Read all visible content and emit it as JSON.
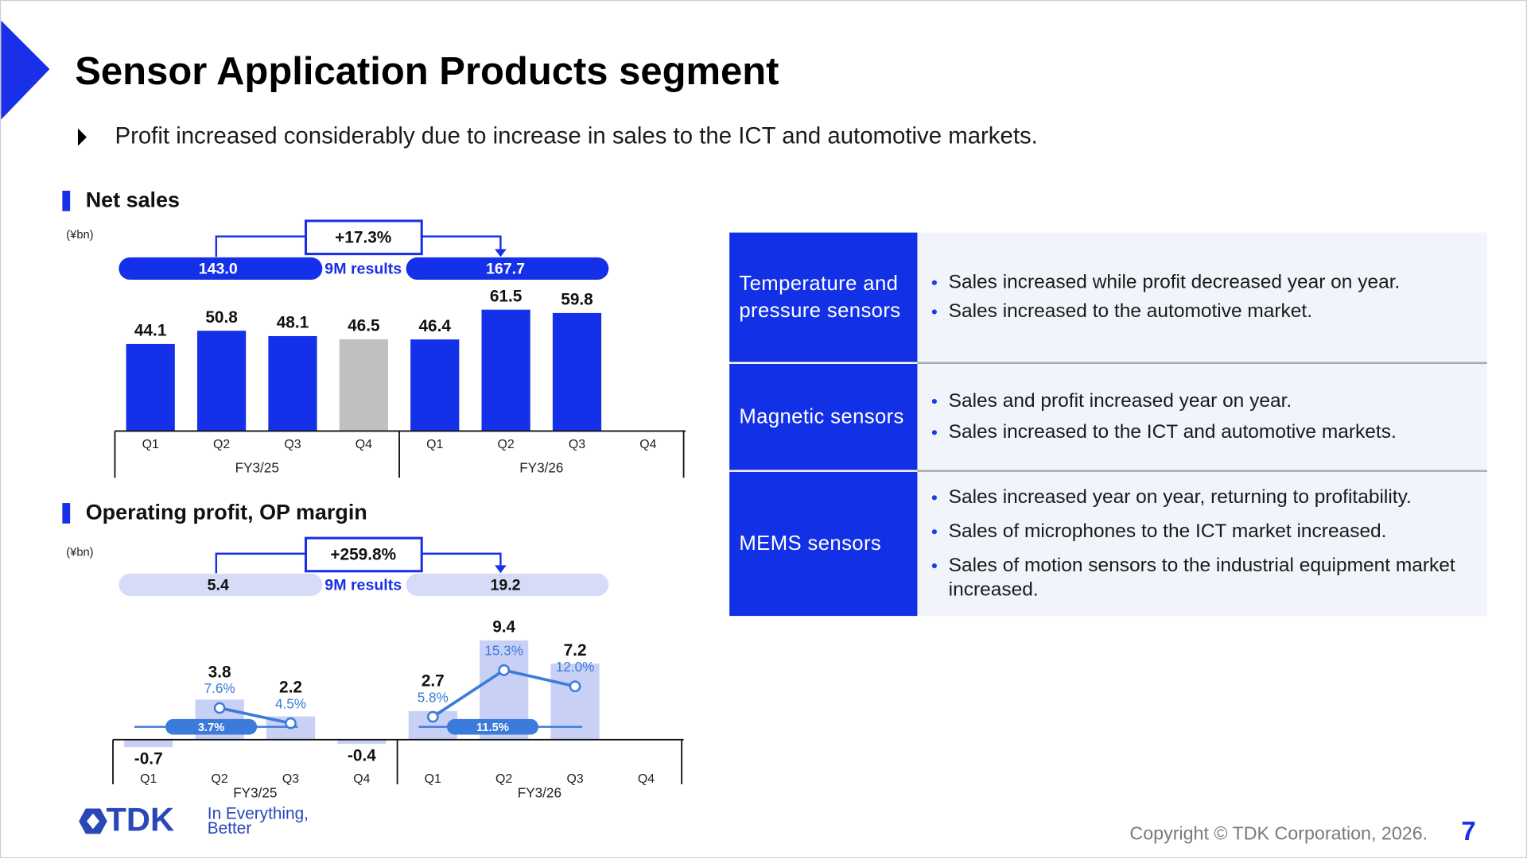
{
  "header": {
    "title": "Sensor Application Products segment",
    "bullet": "Profit increased considerably due to increase in sales to the ICT and automotive markets."
  },
  "chart_data": [
    {
      "type": "bar",
      "title": "Net sales",
      "unit": "(¥bn)",
      "categories": [
        "Q1",
        "Q2",
        "Q3",
        "Q4",
        "Q1",
        "Q2",
        "Q3",
        "Q4"
      ],
      "groups": [
        "FY3/25",
        "FY3/26"
      ],
      "values": [
        44.1,
        50.8,
        48.1,
        46.5,
        46.4,
        61.5,
        59.8,
        null
      ],
      "colors": [
        "#1430e8",
        "#1430e8",
        "#1430e8",
        "#c0c0c0",
        "#1430e8",
        "#1430e8",
        "#1430e8",
        null
      ],
      "ylim": [
        0,
        70
      ],
      "summary": {
        "prior": "143.0",
        "label": "9M results",
        "change": "+17.3%",
        "current": "167.7"
      }
    },
    {
      "type": "bar_line",
      "title": "Operating profit, OP margin",
      "unit": "(¥bn)",
      "categories": [
        "Q1",
        "Q2",
        "Q3",
        "Q4",
        "Q1",
        "Q2",
        "Q3",
        "Q4"
      ],
      "groups": [
        "FY3/25",
        "FY3/26"
      ],
      "values": [
        -0.7,
        3.8,
        2.2,
        -0.4,
        2.7,
        9.4,
        7.2,
        null
      ],
      "color": "#c9d0f6",
      "ylim": [
        -1,
        12
      ],
      "line": {
        "values": [
          null,
          7.6,
          4.5,
          null,
          5.8,
          15.3,
          12.0,
          null
        ],
        "value_labels": [
          null,
          "7.6%",
          "4.5%",
          null,
          "5.8%",
          "15.3%",
          "12.0%",
          null
        ],
        "color": "#3b7bd9",
        "axis": "y2"
      },
      "y2lim": [
        0,
        20
      ],
      "averages": [
        "3.7%",
        "11.5%"
      ],
      "summary": {
        "prior": "5.4",
        "label": "9M results",
        "change": "+259.8%",
        "current": "19.2"
      }
    }
  ],
  "table": {
    "rows": [
      {
        "label": "Temperature and pressure sensors",
        "points": [
          "Sales increased while profit decreased year on year.",
          "Sales increased to the automotive market."
        ]
      },
      {
        "label": "Magnetic sensors",
        "points": [
          "Sales and profit increased year on year.",
          "Sales increased to the ICT and automotive markets."
        ]
      },
      {
        "label": "MEMS sensors",
        "points": [
          "Sales increased year on year, returning to profitability.",
          "Sales of microphones to the ICT market increased.",
          "Sales of motion sensors to the industrial equipment market increased."
        ]
      }
    ]
  },
  "footer": {
    "logo": "TDK",
    "tagline": [
      "In Everything,",
      "Better"
    ],
    "copyright": "Copyright  © TDK Corporation, 2026.",
    "page": "7"
  }
}
